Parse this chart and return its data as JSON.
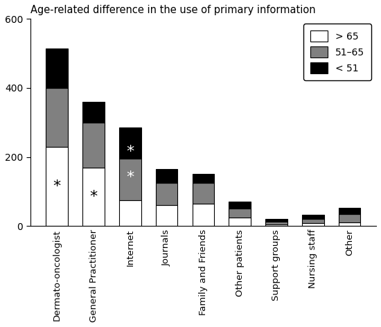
{
  "title": "Age-related difference in the use of primary information",
  "categories": [
    "Dermato-oncologist",
    "General Practitioner",
    "Internet",
    "Journals",
    "Family and Friends",
    "Other patients",
    "Support groups",
    "Nursing staff",
    "Other"
  ],
  "values_gt65": [
    230,
    170,
    75,
    60,
    65,
    25,
    5,
    8,
    10
  ],
  "values_51_65": [
    170,
    130,
    120,
    65,
    60,
    25,
    8,
    12,
    25
  ],
  "values_lt51": [
    115,
    60,
    90,
    40,
    25,
    20,
    8,
    12,
    18
  ],
  "color_gt65": "#ffffff",
  "color_51_65": "#808080",
  "color_lt51": "#000000",
  "edgecolor": "#000000",
  "ylim": [
    0,
    600
  ],
  "yticks": [
    0,
    200,
    400,
    600
  ],
  "legend_labels": [
    "> 65",
    "51–65",
    "< 51"
  ],
  "asterisk_positions": [
    {
      "bar": 0,
      "y": 115,
      "color": "black"
    },
    {
      "bar": 1,
      "y": 85,
      "color": "black"
    },
    {
      "bar": 2,
      "y": 140,
      "color": "white"
    },
    {
      "bar": 2,
      "y": 215,
      "color": "white"
    }
  ],
  "bar_width": 0.6,
  "figsize": [
    5.5,
    4.72
  ],
  "dpi": 100
}
